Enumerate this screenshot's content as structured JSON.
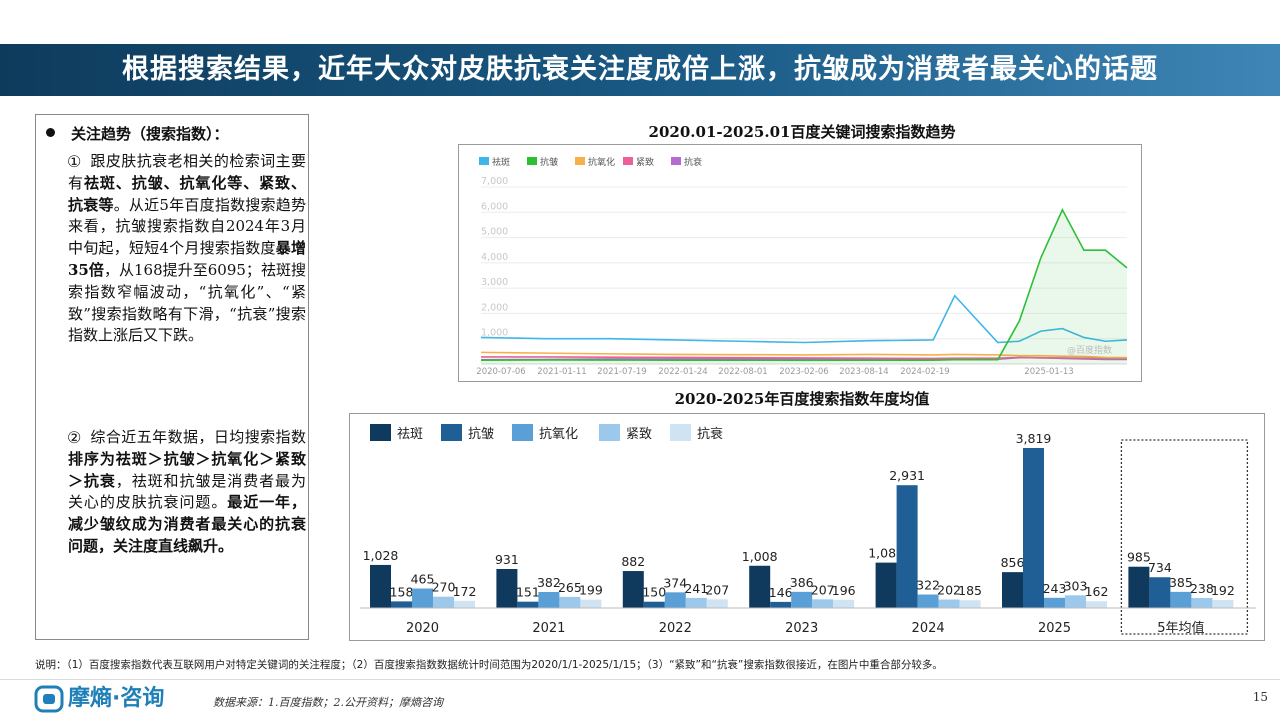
{
  "header": {
    "title": "根据搜索结果，近年大众对皮肤抗衰关注度成倍上涨，抗皱成为消费者最关心的话题"
  },
  "left_panel": {
    "bullet": "关注趋势（搜索指数）：",
    "p1_num": "①",
    "p1_a": "跟皮肤抗衰老相关的检索词主要有",
    "p1_b": "祛斑、抗皱、抗氧化等、紧致、抗衰等",
    "p1_c": "。从近5年百度指数搜索趋势来看，抗皱搜索指数自2024年3月中旬起，短短4个月搜索指数度",
    "p1_d": "暴增35倍",
    "p1_e": "，从168提升至6095；祛斑搜索指数窄幅波动，“抗氧化”、“紧致”搜索指数略有下滑，“抗衰”搜索指数上涨后又下跌。",
    "p2_num": "②",
    "p2_a": "综合近五年数据，日均搜索指数",
    "p2_b": "排序为祛斑＞抗皱＞抗氧化＞紧致＞抗衰",
    "p2_c": "，祛斑和抗皱是消费者最为关心的皮肤抗衰问题。",
    "p2_d": "最近一年，减少皱纹成为消费者最关心的抗衰问题，关注度直线飙升。"
  },
  "footnote": "说明：（1）百度搜索指数代表互联网用户对特定关键词的关注程度；（2）百度搜索指数数据统计时间范围为2020/1/1-2025/1/15；（3）“紧致”和“抗衰”搜索指数很接近，在图片中重合部分较多。",
  "footer": {
    "logo": "摩熵·咨询",
    "source": "数据来源：1.百度指数；2.公开资料；摩熵咨询",
    "page": "15"
  },
  "chart_data": [
    {
      "type": "line",
      "title": "2020.01-2025.01百度关键词搜索指数趋势",
      "legend": [
        "祛斑",
        "抗皱",
        "抗氧化",
        "紧致",
        "抗衰"
      ],
      "colors": [
        "#3fb6e8",
        "#2dbf36",
        "#f6b04a",
        "#ee5f99",
        "#b768d2"
      ],
      "x_ticks": [
        "2020-07-06",
        "2021-01-11",
        "2021-07-19",
        "2022-01-24",
        "2022-08-01",
        "2023-02-06",
        "2023-08-14",
        "2024-02-19",
        "2025-01-13"
      ],
      "y_ticks": [
        "1,000",
        "2,000",
        "3,000",
        "4,000",
        "5,000",
        "6,000",
        "7,000"
      ],
      "ylim": [
        0,
        7000
      ],
      "watermark": "@百度指数",
      "x": [
        "2020-01",
        "2020-07",
        "2021-01",
        "2021-07",
        "2022-01",
        "2022-07",
        "2023-01",
        "2023-07",
        "2023-09",
        "2024-01",
        "2024-03",
        "2024-05",
        "2024-07",
        "2024-09",
        "2024-11",
        "2025-01"
      ],
      "series": [
        {
          "name": "祛斑",
          "values": [
            1050,
            1000,
            1000,
            950,
            900,
            850,
            920,
            950,
            2700,
            850,
            900,
            1300,
            1400,
            1050,
            900,
            950
          ]
        },
        {
          "name": "抗皱",
          "values": [
            150,
            160,
            155,
            150,
            150,
            145,
            150,
            150,
            170,
            170,
            1700,
            4200,
            6100,
            4500,
            4500,
            3800
          ]
        },
        {
          "name": "抗氧化",
          "values": [
            460,
            430,
            400,
            380,
            370,
            360,
            380,
            360,
            380,
            360,
            330,
            330,
            310,
            300,
            260,
            250
          ]
        },
        {
          "name": "紧致",
          "values": [
            280,
            280,
            270,
            260,
            250,
            240,
            230,
            220,
            230,
            230,
            260,
            240,
            240,
            230,
            230,
            230
          ]
        },
        {
          "name": "抗衰",
          "values": [
            170,
            180,
            200,
            200,
            200,
            200,
            200,
            200,
            190,
            190,
            250,
            250,
            220,
            200,
            180,
            180
          ]
        }
      ]
    },
    {
      "type": "bar",
      "title": "2020-2025年百度搜索指数年度均值",
      "categories": [
        "2020",
        "2021",
        "2022",
        "2023",
        "2024",
        "2025",
        "5年均值"
      ],
      "colors": [
        "#0f3a5e",
        "#1f5f95",
        "#5b9fd7",
        "#9cc8ec",
        "#cfe3f3"
      ],
      "series": [
        {
          "name": "祛斑",
          "values": [
            1028,
            931,
            882,
            1008,
            1083,
            856,
            985
          ],
          "labels": [
            "1,028",
            "931",
            "882",
            "1,008",
            "1,083",
            "856",
            "985"
          ]
        },
        {
          "name": "抗皱",
          "values": [
            158,
            151,
            150,
            146,
            2931,
            3819,
            734
          ],
          "labels": [
            "158",
            "151",
            "150",
            "146",
            "2,931",
            "3,819",
            "734"
          ]
        },
        {
          "name": "抗氧化",
          "values": [
            465,
            382,
            374,
            386,
            322,
            243,
            385
          ],
          "labels": [
            "465",
            "382",
            "374",
            "386",
            "322",
            "243",
            "385"
          ]
        },
        {
          "name": "紧致",
          "values": [
            270,
            265,
            241,
            207,
            202,
            303,
            238
          ],
          "labels": [
            "270",
            "265",
            "241",
            "207",
            "202",
            "303",
            "238"
          ]
        },
        {
          "name": "抗衰",
          "values": [
            172,
            199,
            207,
            196,
            185,
            162,
            192
          ],
          "labels": [
            "172",
            "199",
            "207",
            "196",
            "185",
            "162",
            "192"
          ]
        }
      ],
      "highlight_category": "5年均值"
    }
  ]
}
